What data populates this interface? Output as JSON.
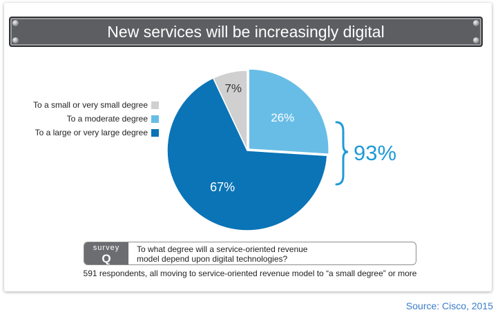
{
  "title": "New services will be increasingly digital",
  "chart_data": {
    "type": "pie",
    "title": "New services will be increasingly digital",
    "slices": [
      {
        "label": "To a small or very small degree",
        "value": 7,
        "display": "7%",
        "color": "#d0d0d0",
        "text_color": "#333333"
      },
      {
        "label": "To a moderate degree",
        "value": 26,
        "display": "26%",
        "color": "#68bde6",
        "text_color": "#ffffff"
      },
      {
        "label": "To a large or very large degree",
        "value": 67,
        "display": "67%",
        "color": "#0a74b6",
        "text_color": "#ffffff"
      }
    ],
    "annotation": {
      "text": "93%",
      "color": "#1e9ad6"
    },
    "legend_position": "left"
  },
  "survey": {
    "tag_word": "survey",
    "tag_letter": "Q",
    "question_line1": "To what degree will a service-oriented revenue",
    "question_line2": "model depend upon digital technologies?"
  },
  "respondents_note": "591 respondents, all moving to service-oriented revenue model to “a small degree” or more",
  "source": "Source: Cisco, 2015"
}
